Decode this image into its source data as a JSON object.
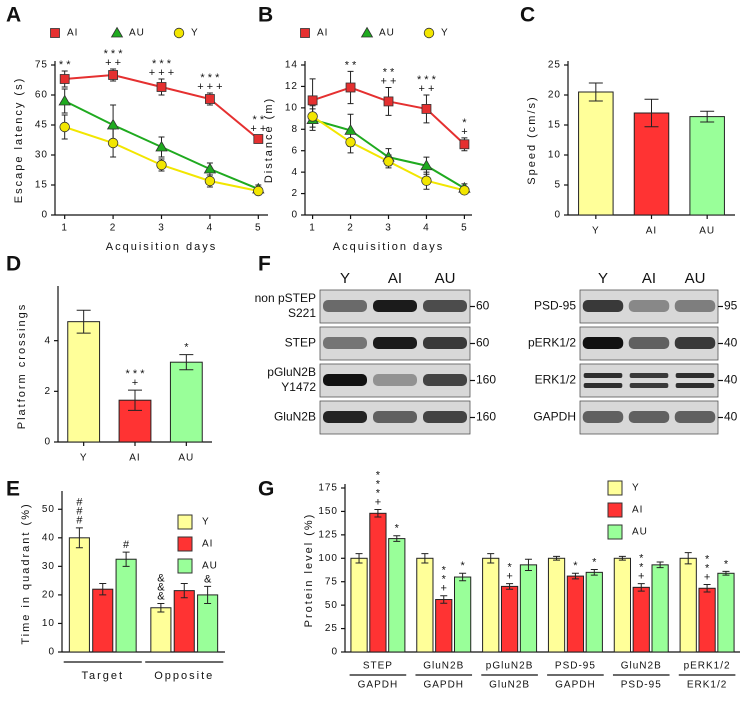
{
  "chart_data": [
    {
      "type": "line",
      "panel": "A",
      "ylabel": "Escape latency (s)",
      "xlabel": "Acquisition days",
      "x": [
        1,
        2,
        3,
        4,
        5
      ],
      "xlim": [
        0.8,
        5.2
      ],
      "xticks": [
        1,
        2,
        3,
        4,
        5
      ],
      "ylim": [
        0,
        75
      ],
      "yticks": [
        0,
        15,
        30,
        45,
        60,
        75
      ],
      "legend": "top",
      "series": [
        {
          "name": "AI",
          "color": "#e53030",
          "marker": "square",
          "values": [
            68,
            70,
            64,
            58,
            38
          ],
          "errors": [
            4,
            3,
            4,
            3,
            2
          ]
        },
        {
          "name": "AU",
          "color": "#1faa1f",
          "marker": "triangle",
          "values": [
            57,
            45,
            34,
            23,
            13
          ],
          "errors": [
            6,
            10,
            5,
            3,
            2
          ]
        },
        {
          "name": "Y",
          "color": "#f2e600",
          "marker": "circle",
          "values": [
            44,
            36,
            25,
            17,
            12
          ],
          "errors": [
            6,
            7,
            3,
            3,
            2
          ]
        }
      ],
      "annotations": [
        {
          "x": 1,
          "lines": [
            "* *"
          ]
        },
        {
          "x": 2,
          "lines": [
            "* * *",
            "+ +"
          ]
        },
        {
          "x": 3,
          "lines": [
            "* * *",
            "+ + +"
          ]
        },
        {
          "x": 4,
          "lines": [
            "* * *",
            "+ + +"
          ]
        },
        {
          "x": 5,
          "lines": [
            "* *",
            "+ +"
          ]
        }
      ]
    },
    {
      "type": "line",
      "panel": "B",
      "ylabel": "Distance (m)",
      "xlabel": "Acquisition days",
      "x": [
        1,
        2,
        3,
        4,
        5
      ],
      "xlim": [
        0.8,
        5.2
      ],
      "xticks": [
        1,
        2,
        3,
        4,
        5
      ],
      "ylim": [
        0,
        14
      ],
      "yticks": [
        0,
        2,
        4,
        6,
        8,
        10,
        12,
        14
      ],
      "legend": "top",
      "series": [
        {
          "name": "AI",
          "color": "#e53030",
          "marker": "square",
          "values": [
            10.7,
            11.9,
            10.6,
            9.9,
            6.6
          ],
          "errors": [
            2,
            1.5,
            1.3,
            1.3,
            0.6
          ]
        },
        {
          "name": "AU",
          "color": "#1faa1f",
          "marker": "triangle",
          "values": [
            8.9,
            7.9,
            5.4,
            4.6,
            2.5
          ],
          "errors": [
            1,
            1.5,
            0.8,
            0.8,
            0.4
          ]
        },
        {
          "name": "Y",
          "color": "#f2e600",
          "marker": "circle",
          "values": [
            9.2,
            6.8,
            5.0,
            3.2,
            2.3
          ],
          "errors": [
            1,
            1,
            0.6,
            0.8,
            0.3
          ]
        }
      ],
      "annotations": [
        {
          "x": 2,
          "lines": [
            "* *"
          ]
        },
        {
          "x": 3,
          "lines": [
            "* *",
            "+ +"
          ]
        },
        {
          "x": 4,
          "lines": [
            "* * *",
            "+ +"
          ]
        },
        {
          "x": 5,
          "lines": [
            "*",
            "+"
          ]
        }
      ]
    },
    {
      "type": "bar",
      "panel": "C",
      "ylabel": "Speed (cm/s)",
      "categories": [
        "Y",
        "AI",
        "AU"
      ],
      "values": [
        20.5,
        17,
        16.4
      ],
      "errors": [
        1.5,
        2.3,
        0.9
      ],
      "colors": [
        "#ffff99",
        "#ff3333",
        "#99ff99"
      ],
      "ylim": [
        0,
        25
      ],
      "yticks": [
        0,
        5,
        10,
        15,
        20,
        25
      ]
    },
    {
      "type": "bar",
      "panel": "D",
      "ylabel": "Platform crossings",
      "categories": [
        "Y",
        "AI",
        "AU"
      ],
      "values": [
        4.75,
        1.65,
        3.15
      ],
      "errors": [
        0.45,
        0.4,
        0.3
      ],
      "colors": [
        "#ffff99",
        "#ff3333",
        "#99ff99"
      ],
      "ylim": [
        0,
        6
      ],
      "yticks": [
        0,
        2,
        4
      ],
      "annotations": [
        null,
        [
          "* * *",
          "+"
        ],
        [
          "*"
        ]
      ]
    },
    {
      "type": "grouped_bar",
      "panel": "E",
      "ylabel": "Time in quadrant (%)",
      "categories": [
        "Target",
        "Opposite"
      ],
      "ylim": [
        0,
        55
      ],
      "yticks": [
        0,
        10,
        20,
        30,
        40,
        50
      ],
      "legend": "top-right",
      "series": [
        {
          "name": "Y",
          "color": "#ffff99",
          "values": [
            40,
            15.5
          ],
          "errors": [
            3.5,
            1.5
          ],
          "annotations": [
            [
              "#",
              "#",
              "#"
            ],
            [
              "&",
              "&",
              "&"
            ]
          ]
        },
        {
          "name": "AI",
          "color": "#ff3333",
          "values": [
            22,
            21.5
          ],
          "errors": [
            2,
            2.5
          ],
          "annotations": [
            null,
            null
          ]
        },
        {
          "name": "AU",
          "color": "#99ff99",
          "values": [
            32.5,
            20
          ],
          "errors": [
            2.5,
            3
          ],
          "annotations": [
            [
              "#"
            ],
            [
              "&"
            ]
          ]
        }
      ]
    },
    {
      "type": "grouped_bar",
      "panel": "G",
      "ylabel": "Protein level (%)",
      "categories": [
        [
          "STEP",
          "GAPDH"
        ],
        [
          "GluN2B",
          "GAPDH"
        ],
        [
          "pGluN2B",
          "GluN2B"
        ],
        [
          "PSD-95",
          "GAPDH"
        ],
        [
          "GluN2B",
          "PSD-95"
        ],
        [
          "pERK1/2",
          "ERK1/2"
        ]
      ],
      "ylim": [
        0,
        175
      ],
      "yticks": [
        0,
        25,
        50,
        75,
        100,
        125,
        150,
        175
      ],
      "legend": "top-right",
      "series": [
        {
          "name": "Y",
          "color": "#ffff99",
          "values": [
            100,
            100,
            100,
            100,
            100,
            100
          ],
          "errors": [
            5,
            5,
            5,
            2,
            2,
            6
          ],
          "annotations": [
            null,
            null,
            null,
            null,
            null,
            null
          ]
        },
        {
          "name": "AI",
          "color": "#ff3333",
          "values": [
            148,
            56,
            70,
            81,
            69,
            68
          ],
          "errors": [
            4,
            4,
            3,
            3,
            4,
            4
          ],
          "annotations": [
            [
              "*",
              "*",
              "*",
              "+"
            ],
            [
              "*",
              "*",
              "+"
            ],
            [
              "*",
              "+"
            ],
            [
              "*"
            ],
            [
              "*",
              "*",
              "+"
            ],
            [
              "*",
              "*",
              "+"
            ]
          ]
        },
        {
          "name": "AU",
          "color": "#99ff99",
          "values": [
            121,
            80,
            93,
            85,
            93,
            84
          ],
          "errors": [
            3,
            4,
            6,
            3,
            3,
            2
          ],
          "annotations": [
            [
              "*"
            ],
            [
              "*"
            ],
            null,
            [
              "*"
            ],
            null,
            [
              "*"
            ]
          ]
        }
      ]
    }
  ],
  "blot": {
    "panel": "F",
    "left": {
      "lanes": [
        "Y",
        "AI",
        "AU"
      ],
      "rows": [
        {
          "label": [
            "non pSTEP",
            "S221"
          ],
          "mw": 60
        },
        {
          "label": [
            "STEP"
          ],
          "mw": 60
        },
        {
          "label": [
            "pGluN2B",
            "Y1472"
          ],
          "mw": 160
        },
        {
          "label": [
            "GluN2B"
          ],
          "mw": 160
        }
      ]
    },
    "right": {
      "lanes": [
        "Y",
        "AI",
        "AU"
      ],
      "rows": [
        {
          "label": [
            "PSD-95"
          ],
          "mw": 95
        },
        {
          "label": [
            "pERK1/2"
          ],
          "mw": 40
        },
        {
          "label": [
            "ERK1/2"
          ],
          "mw": 40
        },
        {
          "label": [
            "GAPDH"
          ],
          "mw": 40
        }
      ]
    }
  }
}
